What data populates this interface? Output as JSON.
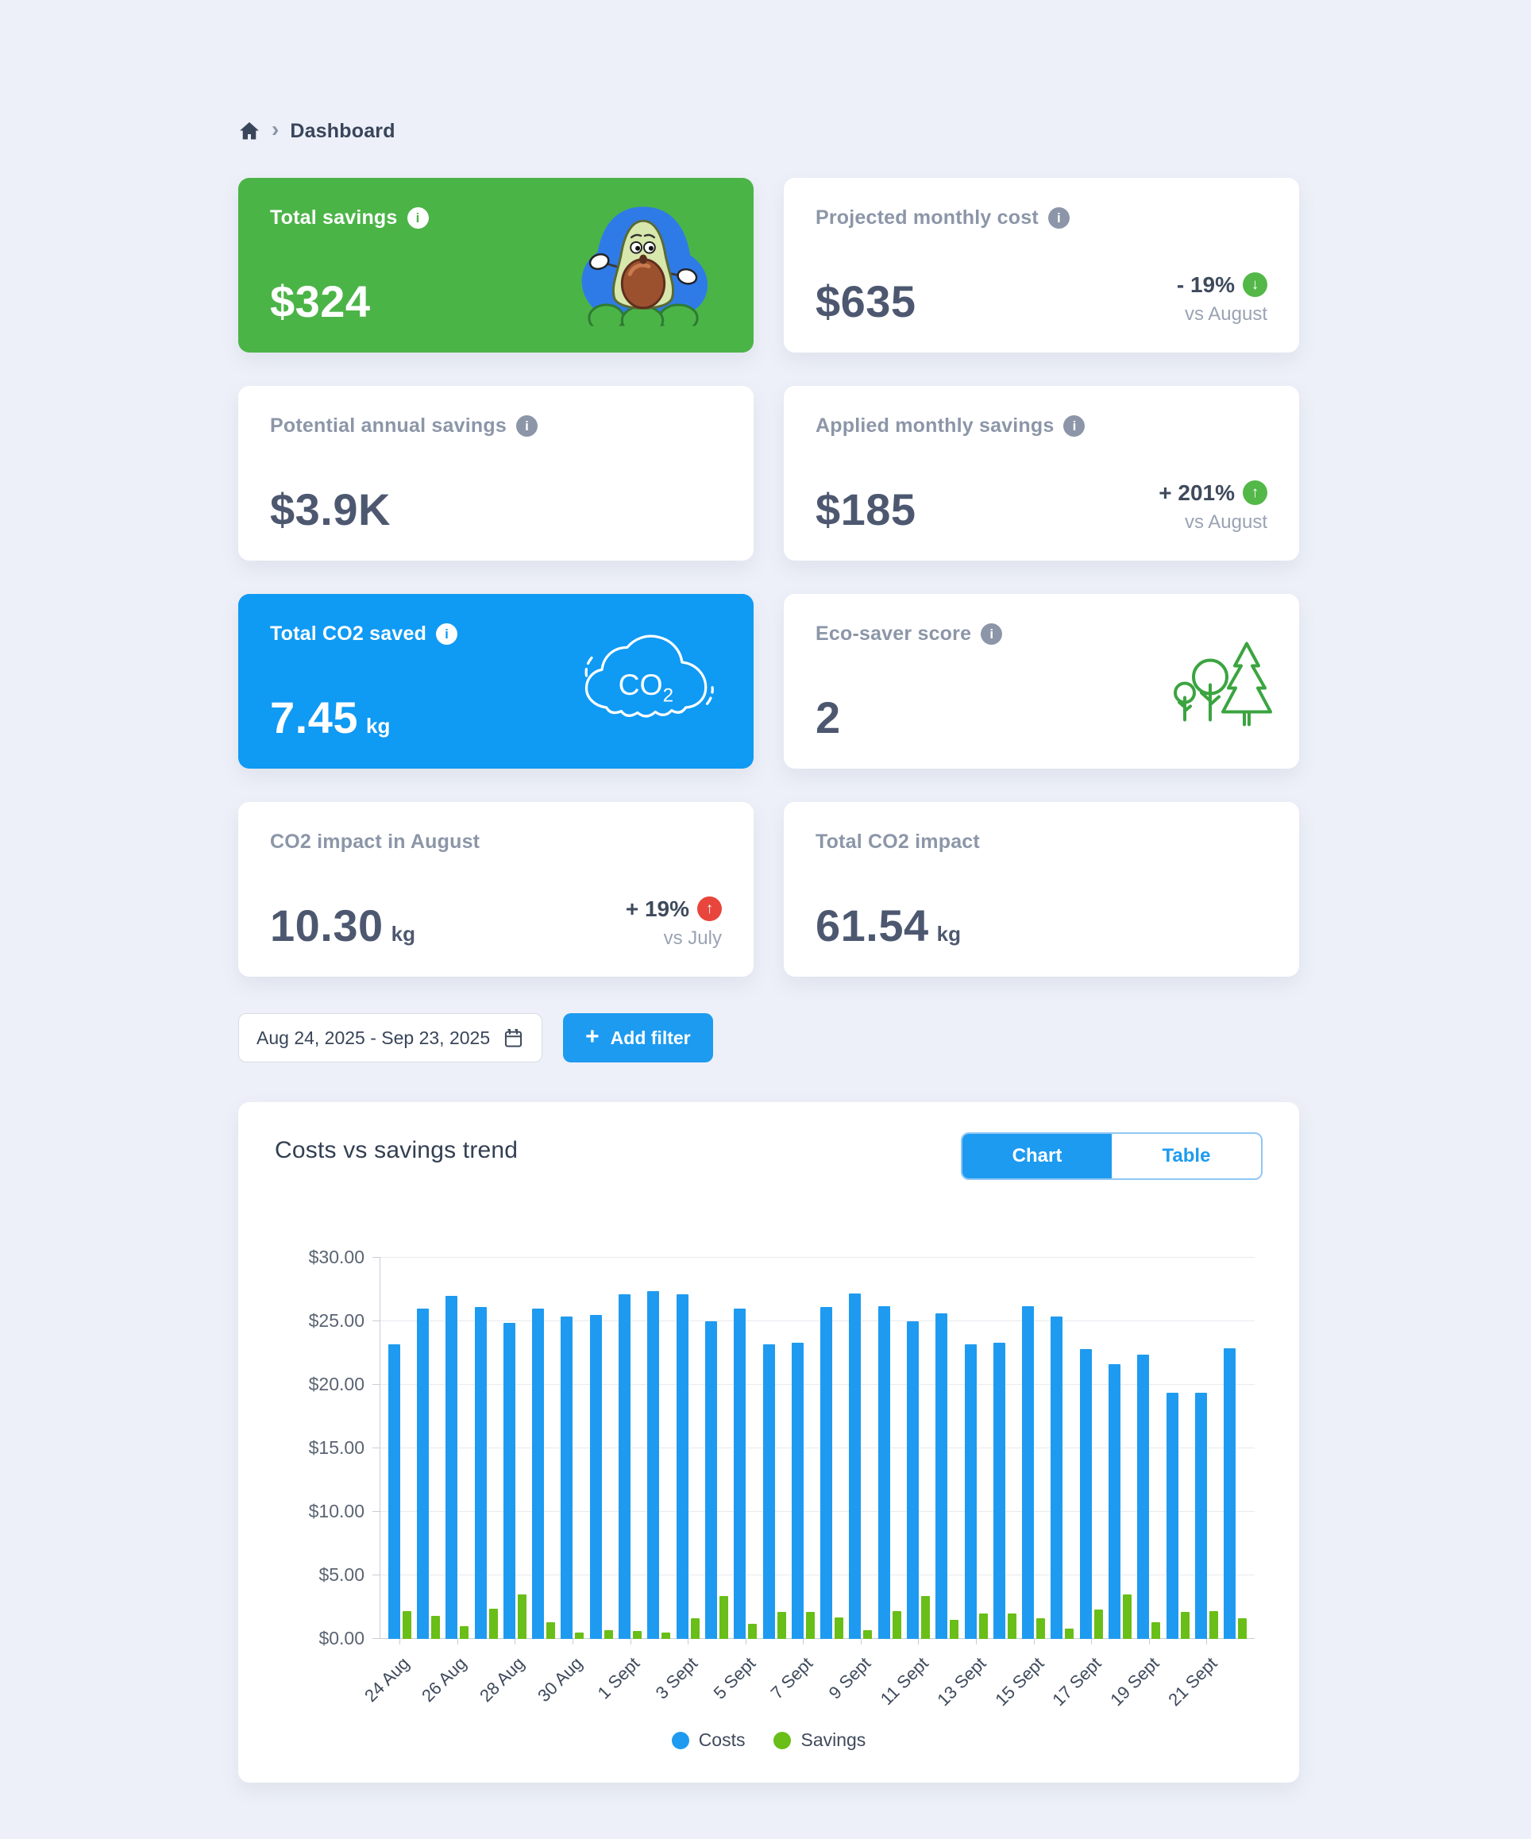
{
  "app": {
    "background": "#EDF0F8",
    "accent_blue": "#1D9BF0"
  },
  "icons": {
    "info": "i",
    "chevron": "›",
    "plus": "+",
    "arrow_up": "↑",
    "arrow_down": "↓"
  },
  "breadcrumb": {
    "page": "Dashboard"
  },
  "kpi_cards": [
    {
      "id": "total-savings",
      "label": "Total savings",
      "value": "$324",
      "style": "green",
      "illustration": "avocado"
    },
    {
      "id": "projected-monthly-cost",
      "label": "Projected monthly cost",
      "value": "$635",
      "delta": "- 19%",
      "delta_direction": "down",
      "delta_badge_color": "#53B848",
      "compare": "vs August"
    },
    {
      "id": "potential-annual-savings",
      "label": "Potential annual savings",
      "value": "$3.9K"
    },
    {
      "id": "applied-monthly-savings",
      "label": "Applied monthly savings",
      "value": "$185",
      "delta": "+ 201%",
      "delta_direction": "up",
      "delta_badge_color": "#53B848",
      "compare": "vs August"
    },
    {
      "id": "total-co2-saved",
      "label": "Total CO2 saved",
      "value": "7.45",
      "unit": "kg",
      "style": "blue",
      "illustration": "co2-cloud"
    },
    {
      "id": "eco-saver-score",
      "label": "Eco-saver score",
      "value": "2",
      "illustration": "trees"
    },
    {
      "id": "co2-impact-august",
      "label": "CO2 impact in August",
      "value": "10.30",
      "unit": "kg",
      "delta": "+ 19%",
      "delta_direction": "up",
      "delta_badge_color": "#E8453C",
      "compare": "vs July"
    },
    {
      "id": "total-co2-impact",
      "label": "Total CO2 impact",
      "value": "61.54",
      "unit": "kg"
    }
  ],
  "filter_bar": {
    "date_range": "Aug 24, 2025 - Sep 23, 2025",
    "add_filter": "Add filter"
  },
  "chart_card": {
    "title": "Costs vs savings trend",
    "view_toggle": {
      "options": [
        "Chart",
        "Table"
      ],
      "active": "Chart"
    }
  },
  "chart_data": {
    "type": "bar",
    "title": "Costs vs savings trend",
    "categories": [
      "24 Aug",
      "25 Aug",
      "26 Aug",
      "27 Aug",
      "28 Aug",
      "29 Aug",
      "30 Aug",
      "31 Aug",
      "1 Sept",
      "2 Sept",
      "3 Sept",
      "4 Sept",
      "5 Sept",
      "6 Sept",
      "7 Sept",
      "8 Sept",
      "9 Sept",
      "10 Sept",
      "11 Sept",
      "12 Sept",
      "13 Sept",
      "14 Sept",
      "15 Sept",
      "16 Sept",
      "17 Sept",
      "18 Sept",
      "19 Sept",
      "20 Sept",
      "21 Sept",
      "22 Sept"
    ],
    "series": [
      {
        "name": "Costs",
        "color": "#1E9BF0",
        "values": [
          23.2,
          26.0,
          27.0,
          26.1,
          24.9,
          26.0,
          25.4,
          25.5,
          27.1,
          27.4,
          27.1,
          25.0,
          26.0,
          23.2,
          23.3,
          26.1,
          27.2,
          26.2,
          25.0,
          25.6,
          23.2,
          23.3,
          26.2,
          25.4,
          22.8,
          21.6,
          22.4,
          19.4,
          19.4,
          22.9
        ]
      },
      {
        "name": "Savings",
        "color": "#69BE17",
        "values": [
          2.2,
          1.8,
          1.0,
          2.4,
          3.5,
          1.3,
          0.5,
          0.7,
          0.6,
          0.5,
          1.6,
          3.4,
          1.2,
          2.1,
          2.1,
          1.7,
          0.7,
          2.2,
          3.4,
          1.5,
          2.0,
          2.0,
          1.6,
          0.8,
          2.3,
          3.5,
          1.3,
          2.1,
          2.2,
          1.6
        ]
      }
    ],
    "xlabel": "",
    "ylabel": "",
    "ylim": [
      0,
      30
    ],
    "ytick_step": 5,
    "ytick_labels": [
      "$0.00",
      "$5.00",
      "$10.00",
      "$15.00",
      "$20.00",
      "$25.00",
      "$30.00"
    ],
    "xtick_every": 2,
    "grid": true,
    "legend_position": "bottom"
  }
}
